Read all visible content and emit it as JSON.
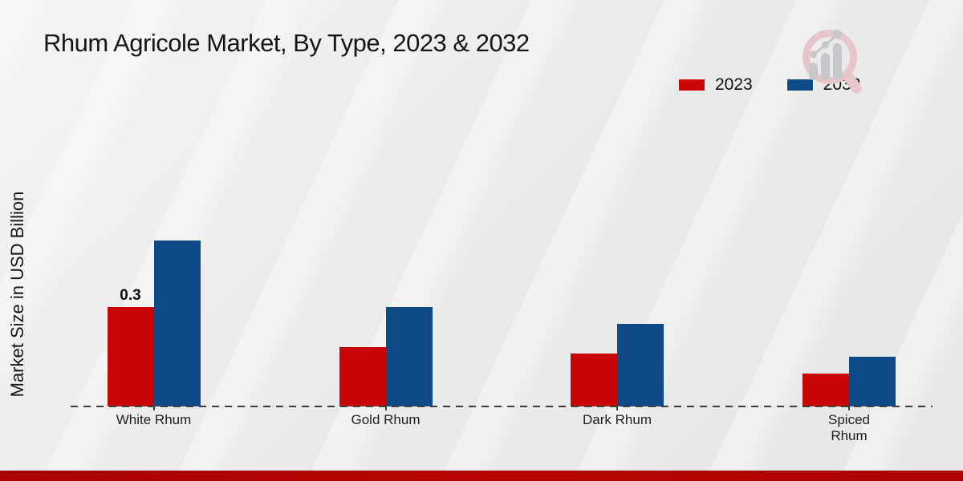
{
  "title": "Rhum Agricole Market, By Type, 2023 & 2032",
  "y_axis_label": "Market Size in USD Billion",
  "legend": {
    "items": [
      {
        "label": "2023",
        "color": "#c90505"
      },
      {
        "label": "2032",
        "color": "#0d4a87"
      }
    ]
  },
  "colors": {
    "series_2023": "#c90505",
    "series_2032": "#0d4a87",
    "baseline": "#3c3c3c",
    "footer_band": "#b20404",
    "background": "#ebebec",
    "text": "#161616"
  },
  "icons": {
    "watermark": "magnifier-growth-chart-icon"
  },
  "chart_data": {
    "type": "bar",
    "categories": [
      "White Rhum",
      "Gold Rhum",
      "Dark Rhum",
      "Spiced\nRhum"
    ],
    "series": [
      {
        "name": "2023",
        "color": "#c90505",
        "values": [
          0.3,
          0.18,
          0.16,
          0.1
        ]
      },
      {
        "name": "2032",
        "color": "#0d4a87",
        "values": [
          0.5,
          0.3,
          0.25,
          0.15
        ]
      }
    ],
    "annotations": [
      {
        "category_index": 0,
        "series_index": 0,
        "text": "0.3"
      }
    ],
    "title": "Rhum Agricole Market, By Type, 2023 & 2032",
    "xlabel": "",
    "ylabel": "Market Size in USD Billion",
    "ylim": [
      0,
      0.55
    ],
    "grid": false,
    "y_axis_ticks_visible": false,
    "baseline_style": "dashed",
    "legend_position": "top-right"
  }
}
